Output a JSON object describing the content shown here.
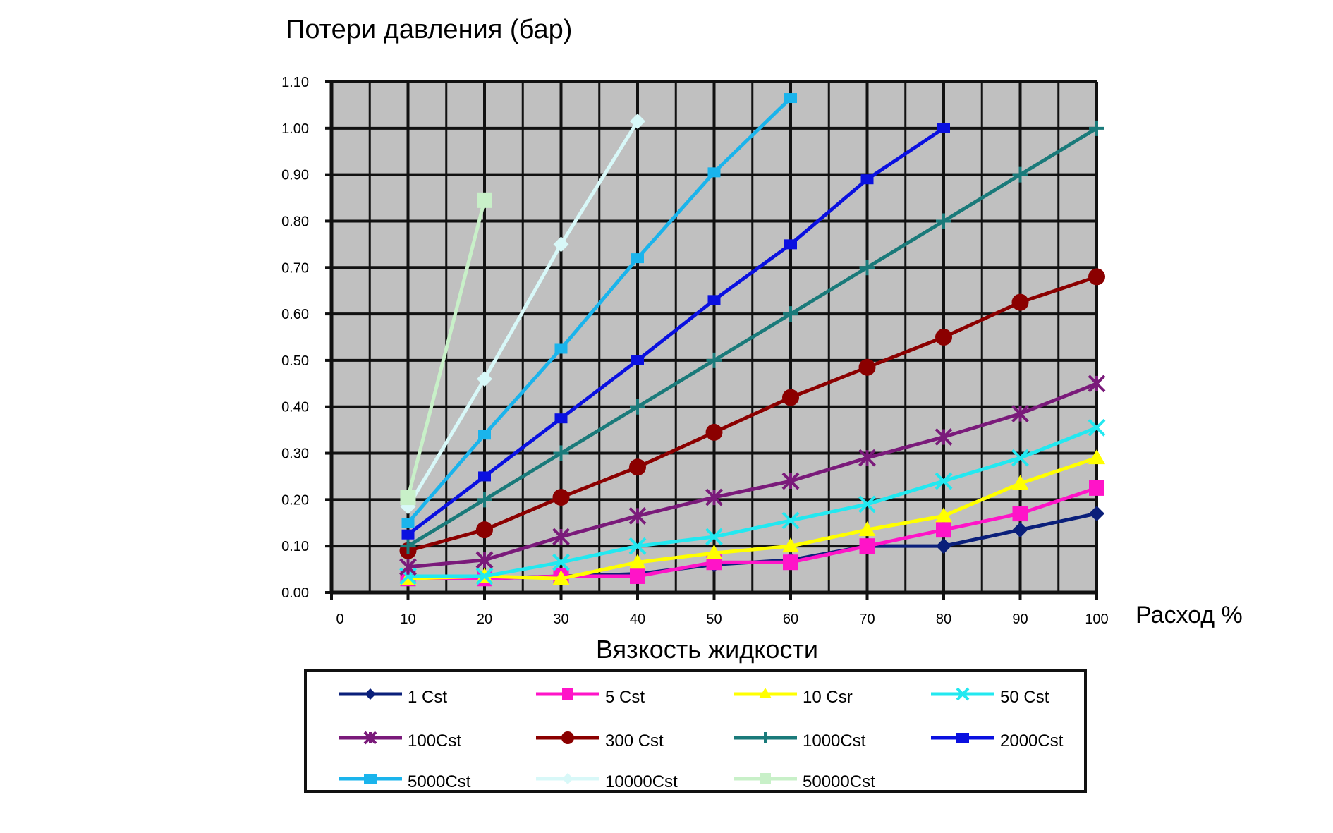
{
  "chart_data": {
    "type": "line",
    "title": "Потери давления (бар)",
    "xlabel": "Расход %",
    "xlabel2": "Вязкость жидкости",
    "x_ticks": [
      "0",
      "10",
      "20",
      "30",
      "40",
      "50",
      "60",
      "70",
      "80",
      "90",
      "100"
    ],
    "y_ticks": [
      "0.00",
      "0.10",
      "0.20",
      "0.30",
      "0.40",
      "0.50",
      "0.60",
      "0.70",
      "0.80",
      "0.90",
      "1.00",
      "1.10"
    ],
    "xlim": [
      0,
      100
    ],
    "ylim": [
      0,
      1.1
    ],
    "grid": true,
    "plot_background": "#c0c0c0",
    "legend_position": "bottom",
    "series": [
      {
        "name": "1 Cst",
        "color": "#0a1f7a",
        "marker": "diamond",
        "x": [
          10,
          20,
          30,
          40,
          50,
          60,
          70,
          80,
          90,
          100
        ],
        "y": [
          0.03,
          0.03,
          0.035,
          0.04,
          0.06,
          0.07,
          0.1,
          0.1,
          0.135,
          0.17
        ]
      },
      {
        "name": "5 Cst",
        "color": "#ff14c8",
        "marker": "square",
        "x": [
          10,
          20,
          30,
          40,
          50,
          60,
          70,
          80,
          90,
          100
        ],
        "y": [
          0.03,
          0.03,
          0.035,
          0.035,
          0.065,
          0.065,
          0.1,
          0.135,
          0.17,
          0.225
        ]
      },
      {
        "name": "10 Csr",
        "color": "#ffff00",
        "marker": "triangle",
        "x": [
          10,
          20,
          30,
          40,
          50,
          60,
          70,
          80,
          90,
          100
        ],
        "y": [
          0.03,
          0.035,
          0.03,
          0.065,
          0.085,
          0.1,
          0.135,
          0.165,
          0.235,
          0.29
        ]
      },
      {
        "name": "50 Cst",
        "color": "#22e8f0",
        "marker": "x",
        "x": [
          10,
          20,
          30,
          40,
          50,
          60,
          70,
          80,
          90,
          100
        ],
        "y": [
          0.035,
          0.035,
          0.065,
          0.1,
          0.12,
          0.155,
          0.19,
          0.24,
          0.29,
          0.355
        ]
      },
      {
        "name": "100Cst",
        "color": "#7a1a7a",
        "marker": "star",
        "x": [
          10,
          20,
          30,
          40,
          50,
          60,
          70,
          80,
          90,
          100
        ],
        "y": [
          0.055,
          0.07,
          0.12,
          0.165,
          0.205,
          0.24,
          0.29,
          0.335,
          0.385,
          0.45
        ]
      },
      {
        "name": "300 Cst",
        "color": "#8b0000",
        "marker": "circle",
        "x": [
          10,
          20,
          30,
          40,
          50,
          60,
          70,
          80,
          90,
          100
        ],
        "y": [
          0.09,
          0.135,
          0.205,
          0.27,
          0.345,
          0.42,
          0.485,
          0.55,
          0.625,
          0.68
        ]
      },
      {
        "name": "1000Cst",
        "color": "#1a7a7a",
        "marker": "plus",
        "x": [
          10,
          20,
          30,
          40,
          50,
          60,
          70,
          80,
          90,
          100
        ],
        "y": [
          0.1,
          0.2,
          0.3,
          0.4,
          0.5,
          0.6,
          0.7,
          0.8,
          0.9,
          1.0
        ]
      },
      {
        "name": "2000Cst",
        "color": "#0a10e0",
        "marker": "dash",
        "x": [
          10,
          20,
          30,
          40,
          50,
          60,
          70,
          80
        ],
        "y": [
          0.125,
          0.25,
          0.375,
          0.5,
          0.63,
          0.75,
          0.89,
          1.0
        ]
      },
      {
        "name": "5000Cst",
        "color": "#1ab4ec",
        "marker": "dash",
        "x": [
          10,
          20,
          30,
          40,
          50,
          60
        ],
        "y": [
          0.15,
          0.34,
          0.525,
          0.72,
          0.905,
          1.065
        ]
      },
      {
        "name": "10000Cst",
        "color": "#d8f8f8",
        "marker": "diamond",
        "x": [
          10,
          20,
          30,
          40
        ],
        "y": [
          0.185,
          0.46,
          0.75,
          1.015
        ]
      },
      {
        "name": "50000Cst",
        "color": "#c8f0c8",
        "marker": "square",
        "x": [
          10,
          20
        ],
        "y": [
          0.205,
          0.845
        ]
      }
    ]
  }
}
